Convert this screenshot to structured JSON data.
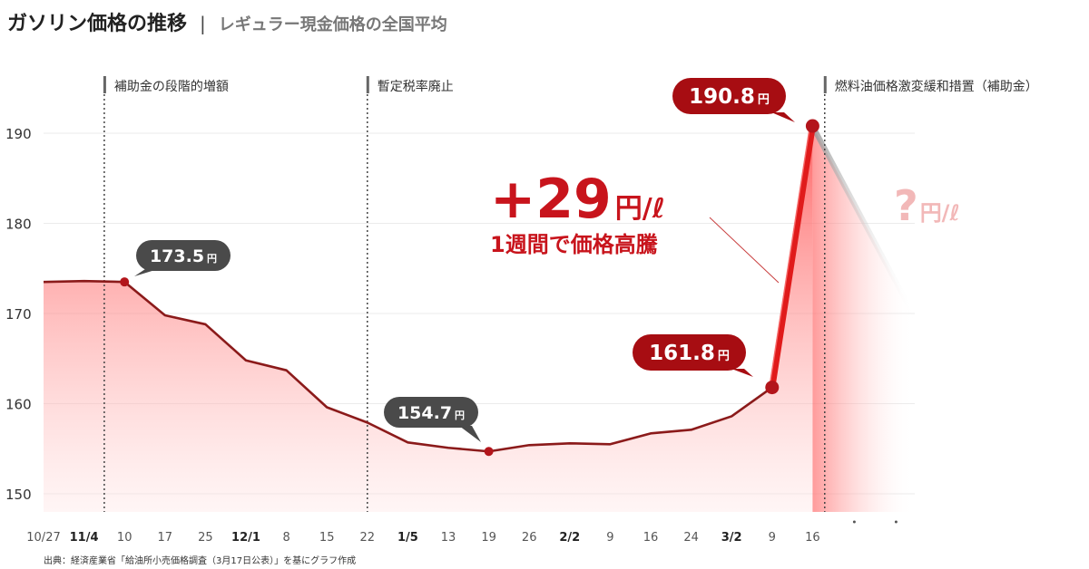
{
  "header": {
    "title": "ガソリン価格の推移",
    "separator": "|",
    "subtitle": "レギュラー現金価格の全国平均"
  },
  "chart_data": {
    "type": "area",
    "title": "ガソリン価格の推移",
    "subtitle": "レギュラー現金価格の全国平均",
    "x_tick_labels": [
      "10/27",
      "11/4",
      "10",
      "17",
      "25",
      "12/1",
      "8",
      "15",
      "22",
      "1/5",
      "13",
      "19",
      "26",
      "2/2",
      "9",
      "16",
      "24",
      "3/2",
      "9",
      "16"
    ],
    "bold_tick_labels": [
      "11/4",
      "12/1",
      "1/5",
      "2/2",
      "3/2"
    ],
    "y_ticks": [
      150,
      160,
      170,
      180,
      190
    ],
    "ylim": [
      148,
      196
    ],
    "grid": true,
    "series": [
      {
        "values": [
          173.5,
          173.6,
          173.5,
          169.8,
          168.8,
          164.8,
          163.7,
          159.6,
          157.9,
          155.7,
          155.1,
          154.7,
          155.4,
          155.6,
          155.5,
          156.7,
          157.1,
          158.6,
          161.8,
          190.8
        ]
      }
    ],
    "projection_label": "?円/ℓ",
    "trailing_dots": 2,
    "phase_markers": [
      {
        "after_index": 1.5,
        "label": "補助金の段階的増額"
      },
      {
        "after_index": 8.0,
        "label": "暫定税率廃止"
      },
      {
        "after_index": 19.3,
        "label": "燃料油価格激変緩和措置（補助金）"
      }
    ],
    "callouts": [
      {
        "index": 2,
        "value": "173.5",
        "unit": "円",
        "style": "dark"
      },
      {
        "index": 11,
        "value": "154.7",
        "unit": "円",
        "style": "dark"
      },
      {
        "index": 18,
        "value": "161.8",
        "unit": "円",
        "style": "red"
      },
      {
        "index": 19,
        "value": "190.8",
        "unit": "円",
        "style": "red"
      }
    ],
    "highlight": {
      "main": "+29",
      "unit": "円/ℓ",
      "sub": "1週間で価格高騰"
    }
  },
  "colors": {
    "line": "#8b1a1a",
    "marker": "#b3151b",
    "surge": "#e01b1b",
    "callout_dark": "#4a4a4a",
    "callout_red": "#a70d12",
    "highlight_text": "#c8141c",
    "projection_text": "#f2b8b8",
    "phase_bar": "#666666"
  },
  "source": "出典：経済産業省「給油所小売価格調査（3月17日公表）」を基にグラフ作成"
}
